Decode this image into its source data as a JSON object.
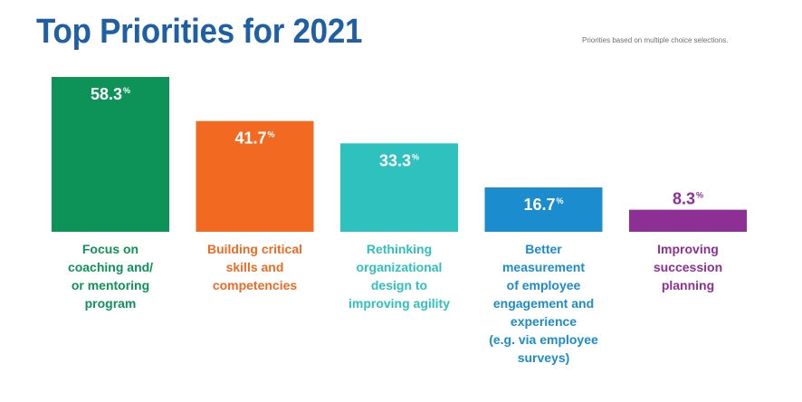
{
  "page": {
    "title": "Top Priorities for 2021",
    "note": "Priorities based on multiple choice selections."
  },
  "chart_data": {
    "type": "bar",
    "title": "Top Priorities for 2021",
    "subtitle": "Priorities based on multiple choice selections.",
    "categories": [
      "Focus on coaching and/ or mentoring program",
      "Building critical skills and competencies",
      "Rethinking organizational design to improving agility",
      "Better measurement of employee engagement and experience (e.g. via employee surveys)",
      "Improving succession planning"
    ],
    "category_lines": [
      [
        "Focus on",
        "coaching and/",
        "or mentoring",
        "program"
      ],
      [
        "Building critical",
        "skills and",
        "competencies"
      ],
      [
        "Rethinking",
        "organizational",
        "design to",
        "improving agility"
      ],
      [
        "Better",
        "measurement",
        "of employee",
        "engagement and",
        "experience",
        "(e.g. via employee",
        "surveys)"
      ],
      [
        "Improving",
        "succession",
        "planning"
      ]
    ],
    "values": [
      58.3,
      41.7,
      33.3,
      16.7,
      8.3
    ],
    "value_labels": [
      "58.3",
      "41.7",
      "33.3",
      "16.7",
      "8.3"
    ],
    "unit_symbol": "%",
    "colors": [
      "#0d9357",
      "#f26a21",
      "#2fc1be",
      "#1b8ccd",
      "#8d2f94"
    ],
    "value_label_inside": [
      true,
      true,
      true,
      true,
      false
    ],
    "ylim": [
      0,
      58.3
    ],
    "grid": false,
    "legend": "none",
    "xlabel": "",
    "ylabel": ""
  }
}
